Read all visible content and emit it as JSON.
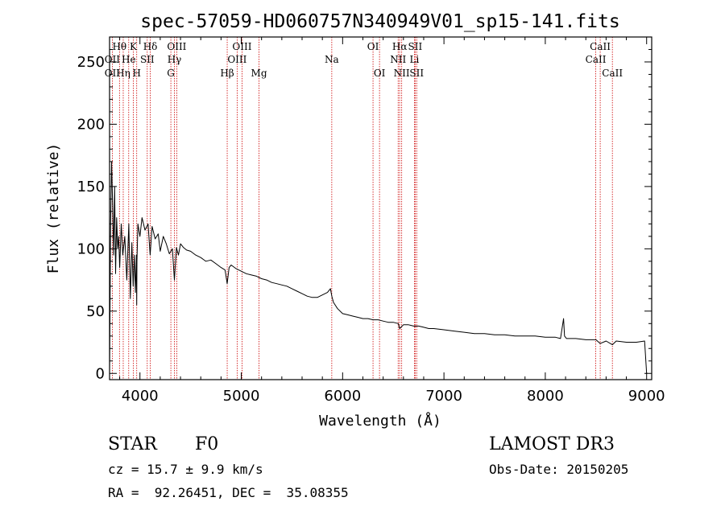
{
  "chart_data": {
    "type": "line",
    "title": "spec-57059-HD060757N340949V01_sp15-141.fits",
    "xlabel": "Wavelength (Å)",
    "ylabel": "Flux (relative)",
    "xlim": [
      3700,
      9050
    ],
    "ylim": [
      -5,
      270
    ],
    "xticks": [
      4000,
      5000,
      6000,
      7000,
      8000,
      9000
    ],
    "yticks": [
      0,
      50,
      100,
      150,
      200,
      250
    ],
    "series": [
      {
        "name": "flux",
        "x": [
          3700,
          3710,
          3720,
          3730,
          3740,
          3750,
          3760,
          3770,
          3780,
          3790,
          3800,
          3815,
          3830,
          3850,
          3870,
          3890,
          3905,
          3920,
          3933,
          3945,
          3955,
          3965,
          3968,
          3970,
          3980,
          4000,
          4020,
          4050,
          4080,
          4101,
          4120,
          4150,
          4180,
          4200,
          4230,
          4260,
          4290,
          4320,
          4340,
          4360,
          4380,
          4400,
          4430,
          4460,
          4500,
          4550,
          4600,
          4650,
          4700,
          4750,
          4800,
          4840,
          4861,
          4880,
          4900,
          4950,
          5000,
          5050,
          5100,
          5150,
          5200,
          5250,
          5300,
          5350,
          5400,
          5450,
          5500,
          5550,
          5600,
          5650,
          5700,
          5750,
          5800,
          5850,
          5880,
          5893,
          5910,
          5950,
          6000,
          6050,
          6100,
          6150,
          6200,
          6250,
          6300,
          6350,
          6400,
          6450,
          6500,
          6550,
          6563,
          6600,
          6650,
          6700,
          6750,
          6800,
          6850,
          6900,
          7000,
          7100,
          7200,
          7300,
          7400,
          7500,
          7600,
          7700,
          7800,
          7900,
          8000,
          8100,
          8150,
          8180,
          8190,
          8210,
          8250,
          8300,
          8400,
          8500,
          8542,
          8600,
          8662,
          8700,
          8800,
          8900,
          8980,
          9000
        ],
        "y": [
          0,
          120,
          170,
          135,
          95,
          150,
          80,
          125,
          100,
          110,
          85,
          120,
          95,
          110,
          75,
          120,
          60,
          105,
          70,
          95,
          65,
          95,
          55,
          90,
          120,
          110,
          125,
          115,
          120,
          95,
          118,
          108,
          112,
          98,
          110,
          104,
          96,
          100,
          75,
          101,
          95,
          104,
          101,
          99,
          98,
          95,
          93,
          90,
          91,
          88,
          85,
          83,
          72,
          85,
          87,
          84,
          82,
          80,
          79,
          78,
          76,
          75,
          73,
          72,
          71,
          70,
          68,
          66,
          64,
          62,
          61,
          61,
          63,
          65,
          68,
          62,
          57,
          52,
          48,
          47,
          46,
          45,
          44,
          44,
          43,
          43,
          42,
          41,
          41,
          40,
          36,
          39,
          39,
          38,
          38,
          37,
          36,
          36,
          35,
          34,
          33,
          32,
          32,
          31,
          31,
          30,
          30,
          30,
          29,
          29,
          28,
          44,
          30,
          28,
          28,
          28,
          27,
          27,
          24,
          26,
          23,
          26,
          25,
          25,
          26,
          0
        ]
      }
    ],
    "line_ids": [
      {
        "label": "Hθ",
        "wave": 3798,
        "row": 1
      },
      {
        "label": "K",
        "wave": 3934,
        "row": 1
      },
      {
        "label": "Hδ",
        "wave": 4102,
        "row": 1
      },
      {
        "label": "OIII",
        "wave": 4363,
        "row": 1
      },
      {
        "label": "OIII",
        "wave": 5007,
        "row": 1
      },
      {
        "label": "OI",
        "wave": 6300,
        "row": 1
      },
      {
        "label": "Hα",
        "wave": 6563,
        "row": 1
      },
      {
        "label": "SII",
        "wave": 6716,
        "row": 1
      },
      {
        "label": "CaII",
        "wave": 8542,
        "row": 1
      },
      {
        "label": "OII",
        "wave": 3727,
        "row": 2
      },
      {
        "label": "He",
        "wave": 3889,
        "row": 2
      },
      {
        "label": "SII",
        "wave": 4072,
        "row": 2
      },
      {
        "label": "Hγ",
        "wave": 4340,
        "row": 2
      },
      {
        "label": "OIII",
        "wave": 4959,
        "row": 2
      },
      {
        "label": "Na",
        "wave": 5893,
        "row": 2
      },
      {
        "label": "NII",
        "wave": 6548,
        "row": 2
      },
      {
        "label": "Li",
        "wave": 6708,
        "row": 2
      },
      {
        "label": "CaII",
        "wave": 8498,
        "row": 2
      },
      {
        "label": "OII",
        "wave": 3727,
        "row": 3
      },
      {
        "label": "Hη",
        "wave": 3835,
        "row": 3
      },
      {
        "label": "H",
        "wave": 3968,
        "row": 3
      },
      {
        "label": "G",
        "wave": 4305,
        "row": 3
      },
      {
        "label": "Hβ",
        "wave": 4861,
        "row": 3
      },
      {
        "label": "Mg",
        "wave": 5175,
        "row": 3
      },
      {
        "label": "OI",
        "wave": 6364,
        "row": 3
      },
      {
        "label": "NII",
        "wave": 6583,
        "row": 3
      },
      {
        "label": "SII",
        "wave": 6731,
        "row": 3
      },
      {
        "label": "CaII",
        "wave": 8662,
        "row": 3
      }
    ],
    "marker_lines": [
      3727,
      3798,
      3835,
      3889,
      3934,
      3968,
      4072,
      4102,
      4305,
      4340,
      4363,
      4861,
      4959,
      5007,
      5175,
      5893,
      6300,
      6364,
      6548,
      6563,
      6583,
      6708,
      6716,
      6731,
      8498,
      8542,
      8662
    ],
    "marker_color": "#cc0000",
    "line_color": "#000000"
  },
  "info": {
    "object_type": "STAR",
    "subclass": "F0",
    "survey": "LAMOST DR3",
    "cz": "cz = 15.7 ± 9.9 km/s",
    "obs_date": "Obs-Date: 20150205",
    "coords": "RA =  92.26451, DEC =  35.08355"
  }
}
